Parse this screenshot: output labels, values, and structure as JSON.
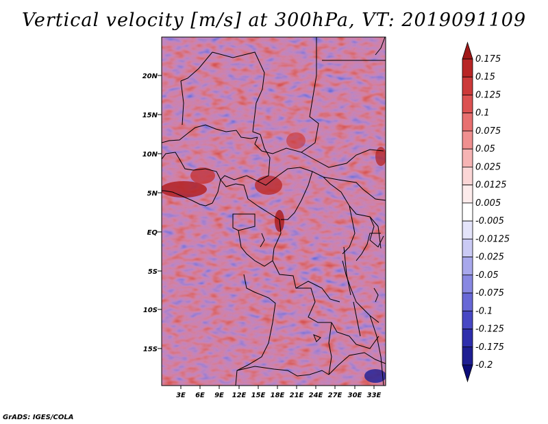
{
  "title": "Vertical velocity [m/s] at 300hPa, VT: 2019091109",
  "credit": "GrADS: IGES/COLA",
  "map": {
    "lat_labels": [
      "20N",
      "15N",
      "10N",
      "5N",
      "EQ",
      "5S",
      "10S",
      "15S"
    ],
    "lon_labels": [
      "3E",
      "6E",
      "9E",
      "12E",
      "15E",
      "18E",
      "21E",
      "24E",
      "27E",
      "30E",
      "33E"
    ]
  },
  "colorbar": {
    "labels": [
      "0.175",
      "0.15",
      "0.125",
      "0.1",
      "0.075",
      "0.05",
      "0.025",
      "0.0125",
      "0.005",
      "-0.005",
      "-0.0125",
      "-0.025",
      "-0.05",
      "-0.075",
      "-0.1",
      "-0.125",
      "-0.175",
      "-0.2"
    ],
    "colors": [
      "#a01818",
      "#b82626",
      "#cc3a3a",
      "#dc5252",
      "#e87070",
      "#f09090",
      "#f6b4b4",
      "#fbd6d6",
      "#fdecec",
      "#ffffff",
      "#e4e4fa",
      "#cacaf4",
      "#a8a8ec",
      "#8888e2",
      "#6868d6",
      "#4848c4",
      "#2e2eac",
      "#1e1e92",
      "#0c0c78"
    ]
  }
}
